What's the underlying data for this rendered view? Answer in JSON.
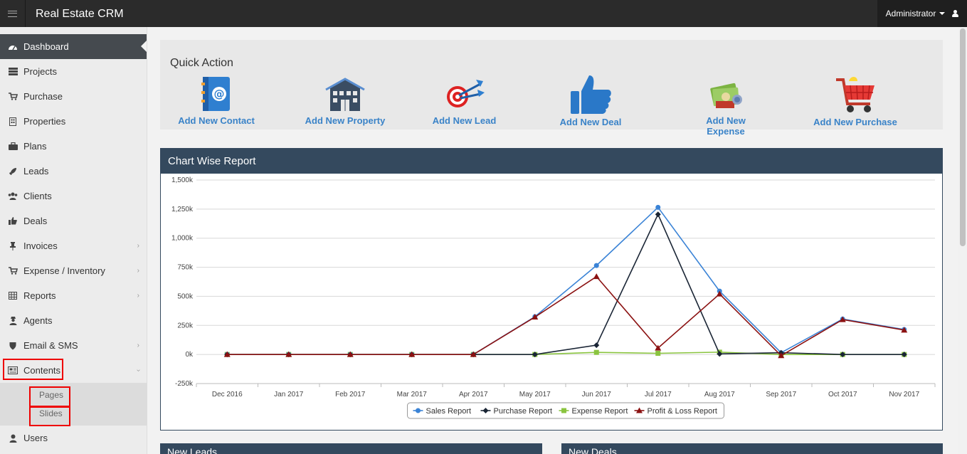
{
  "app": {
    "title": "Real Estate CRM",
    "user": "Administrator"
  },
  "sidebar": {
    "items": [
      {
        "label": "Dashboard",
        "icon": "dashboard-icon"
      },
      {
        "label": "Projects",
        "icon": "server-icon"
      },
      {
        "label": "Purchase",
        "icon": "cart-icon"
      },
      {
        "label": "Properties",
        "icon": "building-icon"
      },
      {
        "label": "Plans",
        "icon": "briefcase-icon"
      },
      {
        "label": "Leads",
        "icon": "rocket-icon"
      },
      {
        "label": "Clients",
        "icon": "users-icon"
      },
      {
        "label": "Deals",
        "icon": "thumbs-up-icon"
      },
      {
        "label": "Invoices",
        "icon": "pin-icon"
      },
      {
        "label": "Expense / Inventory",
        "icon": "cart-icon"
      },
      {
        "label": "Reports",
        "icon": "table-icon"
      },
      {
        "label": "Agents",
        "icon": "user-secret-icon"
      },
      {
        "label": "Email & SMS",
        "icon": "shield-icon"
      },
      {
        "label": "Contents",
        "icon": "newspaper-icon"
      },
      {
        "label": "Users",
        "icon": "user-icon"
      }
    ],
    "sub_items": [
      {
        "label": "Pages"
      },
      {
        "label": "Slides"
      }
    ]
  },
  "quick_action": {
    "title": "Quick Action",
    "actions": [
      {
        "label": "Add New Contact",
        "icon": "address-book-icon"
      },
      {
        "label": "Add New Property",
        "icon": "building-icon"
      },
      {
        "label": "Add New Lead",
        "icon": "target-icon"
      },
      {
        "label": "Add New Deal",
        "icon": "thumbs-up-icon"
      },
      {
        "label": "Add New Expense",
        "icon": "money-icon"
      },
      {
        "label": "Add New Purchase",
        "icon": "shopping-cart-icon"
      }
    ]
  },
  "chart_panel": {
    "title": "Chart Wise Report"
  },
  "bottom_panels": [
    {
      "title": "New Leads"
    },
    {
      "title": "New Deals"
    }
  ],
  "chart_data": {
    "type": "line",
    "title": "",
    "xlabel": "",
    "ylabel": "",
    "categories": [
      "Dec 2016",
      "Jan 2017",
      "Feb 2017",
      "Mar 2017",
      "Apr 2017",
      "May 2017",
      "Jun 2017",
      "Jul 2017",
      "Aug 2017",
      "Sep 2017",
      "Oct 2017",
      "Nov 2017"
    ],
    "y_ticks": [
      "-250k",
      "0k",
      "250k",
      "500k",
      "750k",
      "1,000k",
      "1,250k",
      "1,500k"
    ],
    "ylim": [
      -250000,
      1500000
    ],
    "grid": true,
    "legend": "bottom",
    "series": [
      {
        "name": "Sales Report",
        "color": "#3a83d6",
        "marker": "circle",
        "values": [
          0,
          0,
          0,
          0,
          0,
          325000,
          765000,
          1265000,
          545000,
          15000,
          305000,
          215000
        ]
      },
      {
        "name": "Purchase Report",
        "color": "#1a2535",
        "marker": "diamond",
        "values": [
          0,
          0,
          0,
          0,
          0,
          0,
          80000,
          1205000,
          5000,
          15000,
          0,
          0
        ]
      },
      {
        "name": "Expense Report",
        "color": "#8ac43f",
        "marker": "square",
        "values": [
          0,
          0,
          0,
          0,
          0,
          0,
          18000,
          10000,
          20000,
          0,
          0,
          0
        ]
      },
      {
        "name": "Profit & Loss Report",
        "color": "#8b1111",
        "marker": "triangle",
        "values": [
          0,
          0,
          0,
          0,
          0,
          322000,
          670000,
          55000,
          520000,
          -10000,
          300000,
          210000
        ]
      }
    ]
  }
}
